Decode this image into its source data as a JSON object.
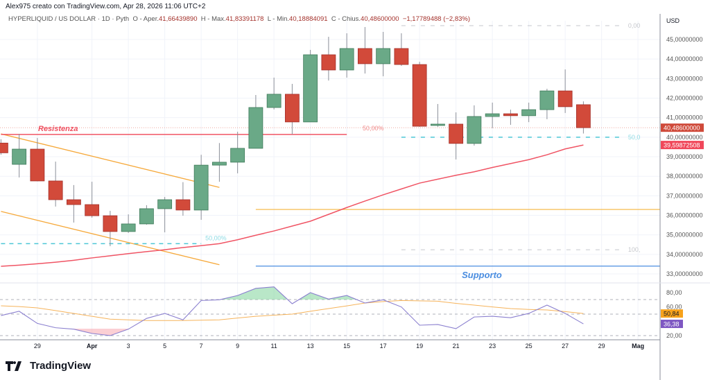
{
  "header": {
    "credit": "Alex975 creato con TradingView.com, Apr 28, 2026 11:06 UTC+2",
    "symbol": "HYPERLIQUID / US DOLLAR · 1D · Pyth",
    "open_label": "O - Aper.",
    "open": "41,66439890",
    "high_label": "H - Max.",
    "high": "41,83391178",
    "low_label": "L - Min.",
    "low": "40,18884091",
    "close_label": "C - Chius.",
    "close": "40,48600000",
    "change": "−1,17789488 (−2,83%)"
  },
  "logo": "TradingView",
  "colors": {
    "up": "#6aa987",
    "down": "#d24a3a",
    "ma": "#f05464",
    "rsi": "#8a7fcf",
    "rsi_ma": "#f6b35a",
    "support": "#4a8de0",
    "channel": "#f6a93b",
    "fib": "#4cc7d6"
  },
  "chart_data": {
    "type": "candlestick",
    "currency": "USD",
    "price_ticks": [
      "45,00000000",
      "44,00000000",
      "43,00000000",
      "42,00000000",
      "41,00000000",
      "40,00000000",
      "39,00000000",
      "38,00000000",
      "37,00000000",
      "36,00000000",
      "35,00000000",
      "34,00000000",
      "33,00000000"
    ],
    "price_tick_values": [
      45,
      44,
      43,
      42,
      41,
      40,
      39,
      38,
      37,
      36,
      35,
      34,
      33
    ],
    "x_ticks": [
      {
        "label": "29",
        "i": 2
      },
      {
        "label": "Apr",
        "i": 5
      },
      {
        "label": "3",
        "i": 7
      },
      {
        "label": "5",
        "i": 9
      },
      {
        "label": "7",
        "i": 11
      },
      {
        "label": "9",
        "i": 13
      },
      {
        "label": "11",
        "i": 15
      },
      {
        "label": "13",
        "i": 17
      },
      {
        "label": "15",
        "i": 19
      },
      {
        "label": "17",
        "i": 21
      },
      {
        "label": "19",
        "i": 23
      },
      {
        "label": "21",
        "i": 25
      },
      {
        "label": "23",
        "i": 27
      },
      {
        "label": "25",
        "i": 29
      },
      {
        "label": "27",
        "i": 31
      },
      {
        "label": "29",
        "i": 33
      },
      {
        "label": "Mag",
        "i": 35
      }
    ],
    "candles": [
      {
        "d": "Mar 27",
        "o": 39.7,
        "h": 39.9,
        "l": 39.1,
        "c": 39.2
      },
      {
        "d": "Mar 28",
        "o": 38.61,
        "h": 40.17,
        "l": 37.94,
        "c": 39.39
      },
      {
        "d": "Mar 29",
        "o": 39.39,
        "h": 39.96,
        "l": 37.74,
        "c": 37.76
      },
      {
        "d": "Mar 30",
        "o": 37.76,
        "h": 38.75,
        "l": 36.45,
        "c": 36.8
      },
      {
        "d": "Mar 31",
        "o": 36.8,
        "h": 37.55,
        "l": 35.63,
        "c": 36.55
      },
      {
        "d": "Apr 1",
        "o": 36.55,
        "h": 37.72,
        "l": 35.88,
        "c": 35.98
      },
      {
        "d": "Apr 2",
        "o": 35.98,
        "h": 36.23,
        "l": 34.42,
        "c": 35.17
      },
      {
        "d": "Apr 3",
        "o": 35.17,
        "h": 36.05,
        "l": 35.1,
        "c": 35.56
      },
      {
        "d": "Apr 4",
        "o": 35.56,
        "h": 36.52,
        "l": 35.52,
        "c": 36.34
      },
      {
        "d": "Apr 5",
        "o": 36.34,
        "h": 36.94,
        "l": 35.13,
        "c": 36.8
      },
      {
        "d": "Apr 6",
        "o": 36.8,
        "h": 37.7,
        "l": 35.98,
        "c": 36.27
      },
      {
        "d": "Apr 7",
        "o": 36.27,
        "h": 39.1,
        "l": 35.77,
        "c": 38.57
      },
      {
        "d": "Apr 8",
        "o": 38.57,
        "h": 39.7,
        "l": 37.72,
        "c": 38.72
      },
      {
        "d": "Apr 9",
        "o": 38.72,
        "h": 40.28,
        "l": 38.15,
        "c": 39.43
      },
      {
        "d": "Apr 10",
        "o": 39.43,
        "h": 42.16,
        "l": 39.43,
        "c": 41.52
      },
      {
        "d": "Apr 11",
        "o": 41.52,
        "h": 43.05,
        "l": 41.42,
        "c": 42.2
      },
      {
        "d": "Apr 12",
        "o": 42.2,
        "h": 42.73,
        "l": 40.14,
        "c": 40.78
      },
      {
        "d": "Apr 13",
        "o": 40.78,
        "h": 44.47,
        "l": 40.78,
        "c": 44.22
      },
      {
        "d": "Apr 14",
        "o": 44.22,
        "h": 45.14,
        "l": 42.9,
        "c": 43.44
      },
      {
        "d": "Apr 15",
        "o": 43.44,
        "h": 45.32,
        "l": 43.05,
        "c": 44.54
      },
      {
        "d": "Apr 16",
        "o": 44.54,
        "h": 45.64,
        "l": 43.26,
        "c": 43.76
      },
      {
        "d": "Apr 17",
        "o": 43.76,
        "h": 45.39,
        "l": 43.12,
        "c": 44.54
      },
      {
        "d": "Apr 18",
        "o": 44.54,
        "h": 45.32,
        "l": 43.65,
        "c": 43.72
      },
      {
        "d": "Apr 19",
        "o": 43.72,
        "h": 43.86,
        "l": 40.53,
        "c": 40.56
      },
      {
        "d": "Apr 20",
        "o": 40.6,
        "h": 41.7,
        "l": 40.53,
        "c": 40.67
      },
      {
        "d": "Apr 21",
        "o": 40.67,
        "h": 41.27,
        "l": 38.86,
        "c": 39.68
      },
      {
        "d": "Apr 22",
        "o": 39.68,
        "h": 41.63,
        "l": 39.57,
        "c": 41.06
      },
      {
        "d": "Apr 23",
        "o": 41.06,
        "h": 41.77,
        "l": 40.46,
        "c": 41.2
      },
      {
        "d": "Apr 24",
        "o": 41.2,
        "h": 41.41,
        "l": 40.63,
        "c": 41.1
      },
      {
        "d": "Apr 25",
        "o": 41.1,
        "h": 41.77,
        "l": 40.77,
        "c": 41.41
      },
      {
        "d": "Apr 26",
        "o": 41.41,
        "h": 42.48,
        "l": 40.92,
        "c": 42.37
      },
      {
        "d": "Apr 27",
        "o": 42.37,
        "h": 43.47,
        "l": 41.24,
        "c": 41.56
      },
      {
        "d": "Apr 28",
        "o": 41.6643989,
        "h": 41.83391178,
        "l": 40.18884091,
        "c": 40.486
      }
    ],
    "ma": [
      33.39,
      33.45,
      33.52,
      33.6,
      33.7,
      33.82,
      33.93,
      34.04,
      34.14,
      34.24,
      34.35,
      34.45,
      34.55,
      34.75,
      34.98,
      35.2,
      35.45,
      35.7,
      36.05,
      36.4,
      36.73,
      37.05,
      37.35,
      37.65,
      37.85,
      38.05,
      38.23,
      38.45,
      38.65,
      38.85,
      39.1,
      39.4,
      39.6
    ],
    "last_price_label": "40,48600000",
    "ma_label": "39,59872508",
    "drawings": {
      "resistance": {
        "label": "Resistenza",
        "price": 40.14,
        "from": 0,
        "to": 19
      },
      "support": {
        "label": "Supporto",
        "price": 33.4,
        "from": 14,
        "to": 36
      },
      "orange_level": {
        "price": 36.3,
        "from": 14,
        "to": 36
      },
      "channel_upper": {
        "p1": 40.17,
        "p2": 37.43,
        "from": 0,
        "to": 12
      },
      "channel_lower": {
        "p1": 36.2,
        "p2": 33.47,
        "from": 0,
        "to": 12
      },
      "fib_left": {
        "price": 34.55,
        "label": "50,00%",
        "from": 0,
        "to": 11
      },
      "fib_mid_label": "50,00%",
      "fib_right": {
        "levels": [
          {
            "price": 45.71,
            "label": "0,00"
          },
          {
            "price": 40.0,
            "label": "50,0"
          },
          {
            "price": 34.24,
            "label": "100,"
          }
        ],
        "from": 22,
        "to": 34
      }
    },
    "rsi": {
      "ticks": [
        "80,00",
        "60,00",
        "20,00"
      ],
      "tick_values": [
        80,
        60,
        20
      ],
      "values": [
        48,
        54,
        37,
        31,
        29,
        23,
        20,
        29,
        44,
        51,
        42,
        69,
        70,
        76,
        86,
        88,
        64.5,
        80,
        71,
        76,
        65.5,
        70,
        60,
        34.5,
        35.5,
        29.7,
        46,
        47,
        45,
        51,
        62.6,
        51,
        36.38
      ],
      "ma": [
        61.6,
        60.5,
        58.7,
        55,
        51,
        47,
        43,
        42,
        41,
        41,
        41,
        41.5,
        42,
        44.5,
        47,
        48.5,
        50,
        54,
        57.7,
        61.5,
        65.5,
        67.5,
        69,
        68.5,
        68,
        65,
        62.6,
        60,
        57.7,
        56.5,
        55.8,
        53.5,
        50.84
      ],
      "ma_label": "50,84",
      "rsi_label": "36,38"
    }
  }
}
